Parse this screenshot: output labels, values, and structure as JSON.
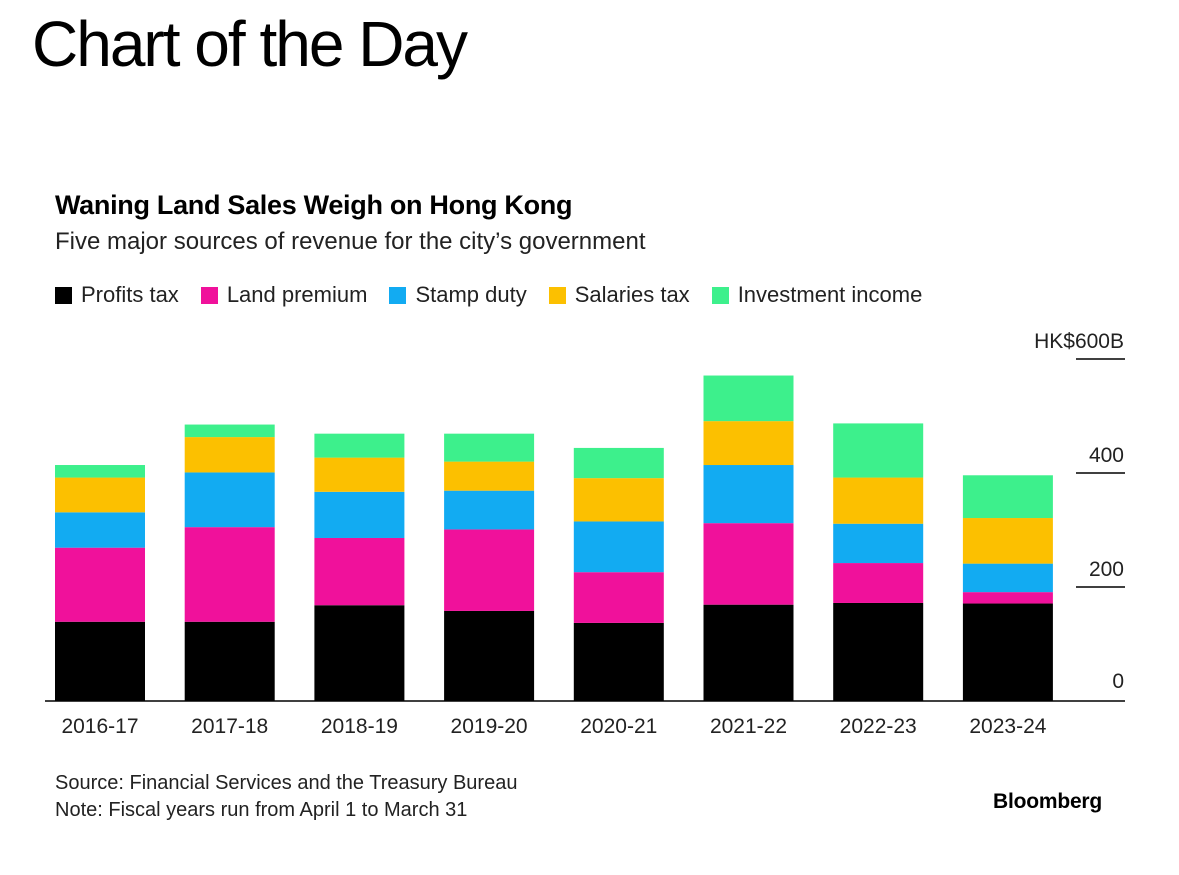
{
  "page_heading": "Chart of the Day",
  "chart_data": {
    "type": "bar",
    "stacked": true,
    "title": "Waning Land Sales Weigh on Hong Kong",
    "subtitle": "Five major sources of revenue for the city’s government",
    "categories": [
      "2016-17",
      "2017-18",
      "2018-19",
      "2019-20",
      "2020-21",
      "2021-22",
      "2022-23",
      "2023-24"
    ],
    "series": [
      {
        "name": "Profits tax",
        "color": "#000000",
        "values": [
          139,
          139,
          168,
          158,
          137,
          169,
          172,
          171
        ]
      },
      {
        "name": "Land premium",
        "color": "#f0119b",
        "values": [
          130,
          166,
          118,
          143,
          89,
          143,
          70,
          20
        ]
      },
      {
        "name": "Stamp duty",
        "color": "#12abf2",
        "values": [
          62,
          96,
          81,
          68,
          89,
          102,
          69,
          50
        ]
      },
      {
        "name": "Salaries tax",
        "color": "#fcc000",
        "values": [
          61,
          62,
          60,
          51,
          76,
          77,
          81,
          80
        ]
      },
      {
        "name": "Investment income",
        "color": "#3df08c",
        "values": [
          22,
          22,
          42,
          49,
          53,
          80,
          95,
          75
        ]
      }
    ],
    "ylim": [
      0,
      600
    ],
    "yticks": [
      0,
      200,
      400,
      600
    ],
    "ytick_labels": [
      "0",
      "200",
      "400",
      "HK$600B"
    ],
    "legend_position": "top-left",
    "source": "Source: Financial Services and the Treasury Bureau",
    "note": "Note: Fiscal years run from April 1 to March 31",
    "brand": "Bloomberg"
  }
}
